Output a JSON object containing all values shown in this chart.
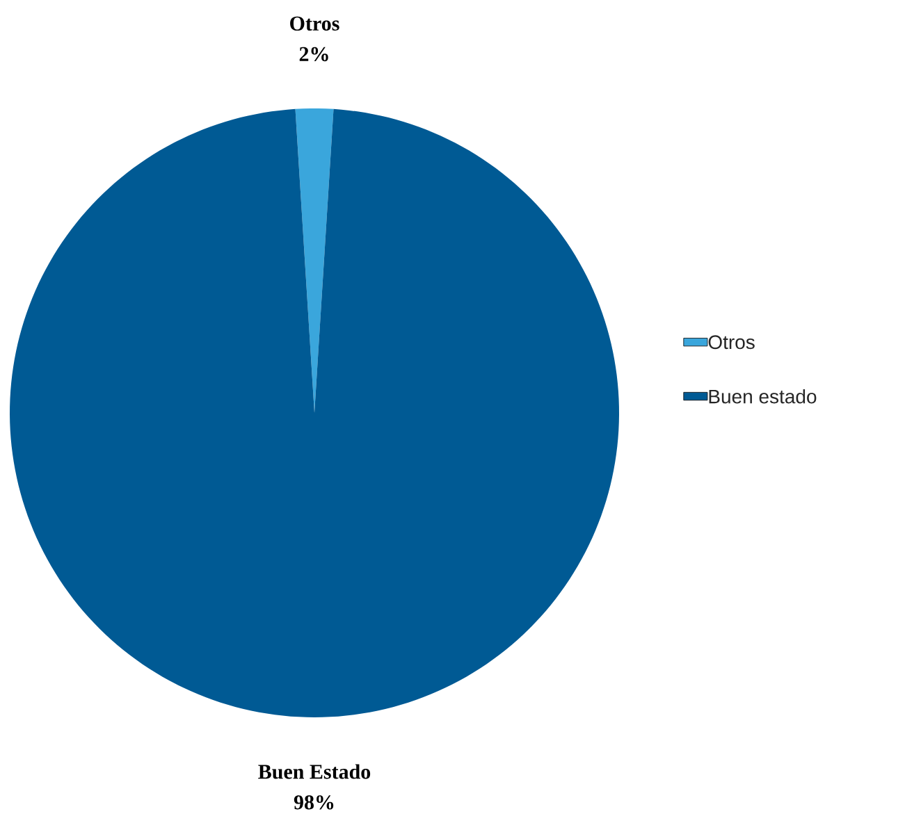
{
  "chart_data": {
    "type": "pie",
    "categories": [
      "Otros",
      "Buen estado"
    ],
    "values": [
      2,
      98
    ],
    "colors": [
      "#3aa6dc",
      "#005a94"
    ],
    "value_labels": [
      "2%",
      "98%"
    ],
    "annotations": [
      "Otros",
      "Buen Estado"
    ],
    "legend": "right"
  }
}
